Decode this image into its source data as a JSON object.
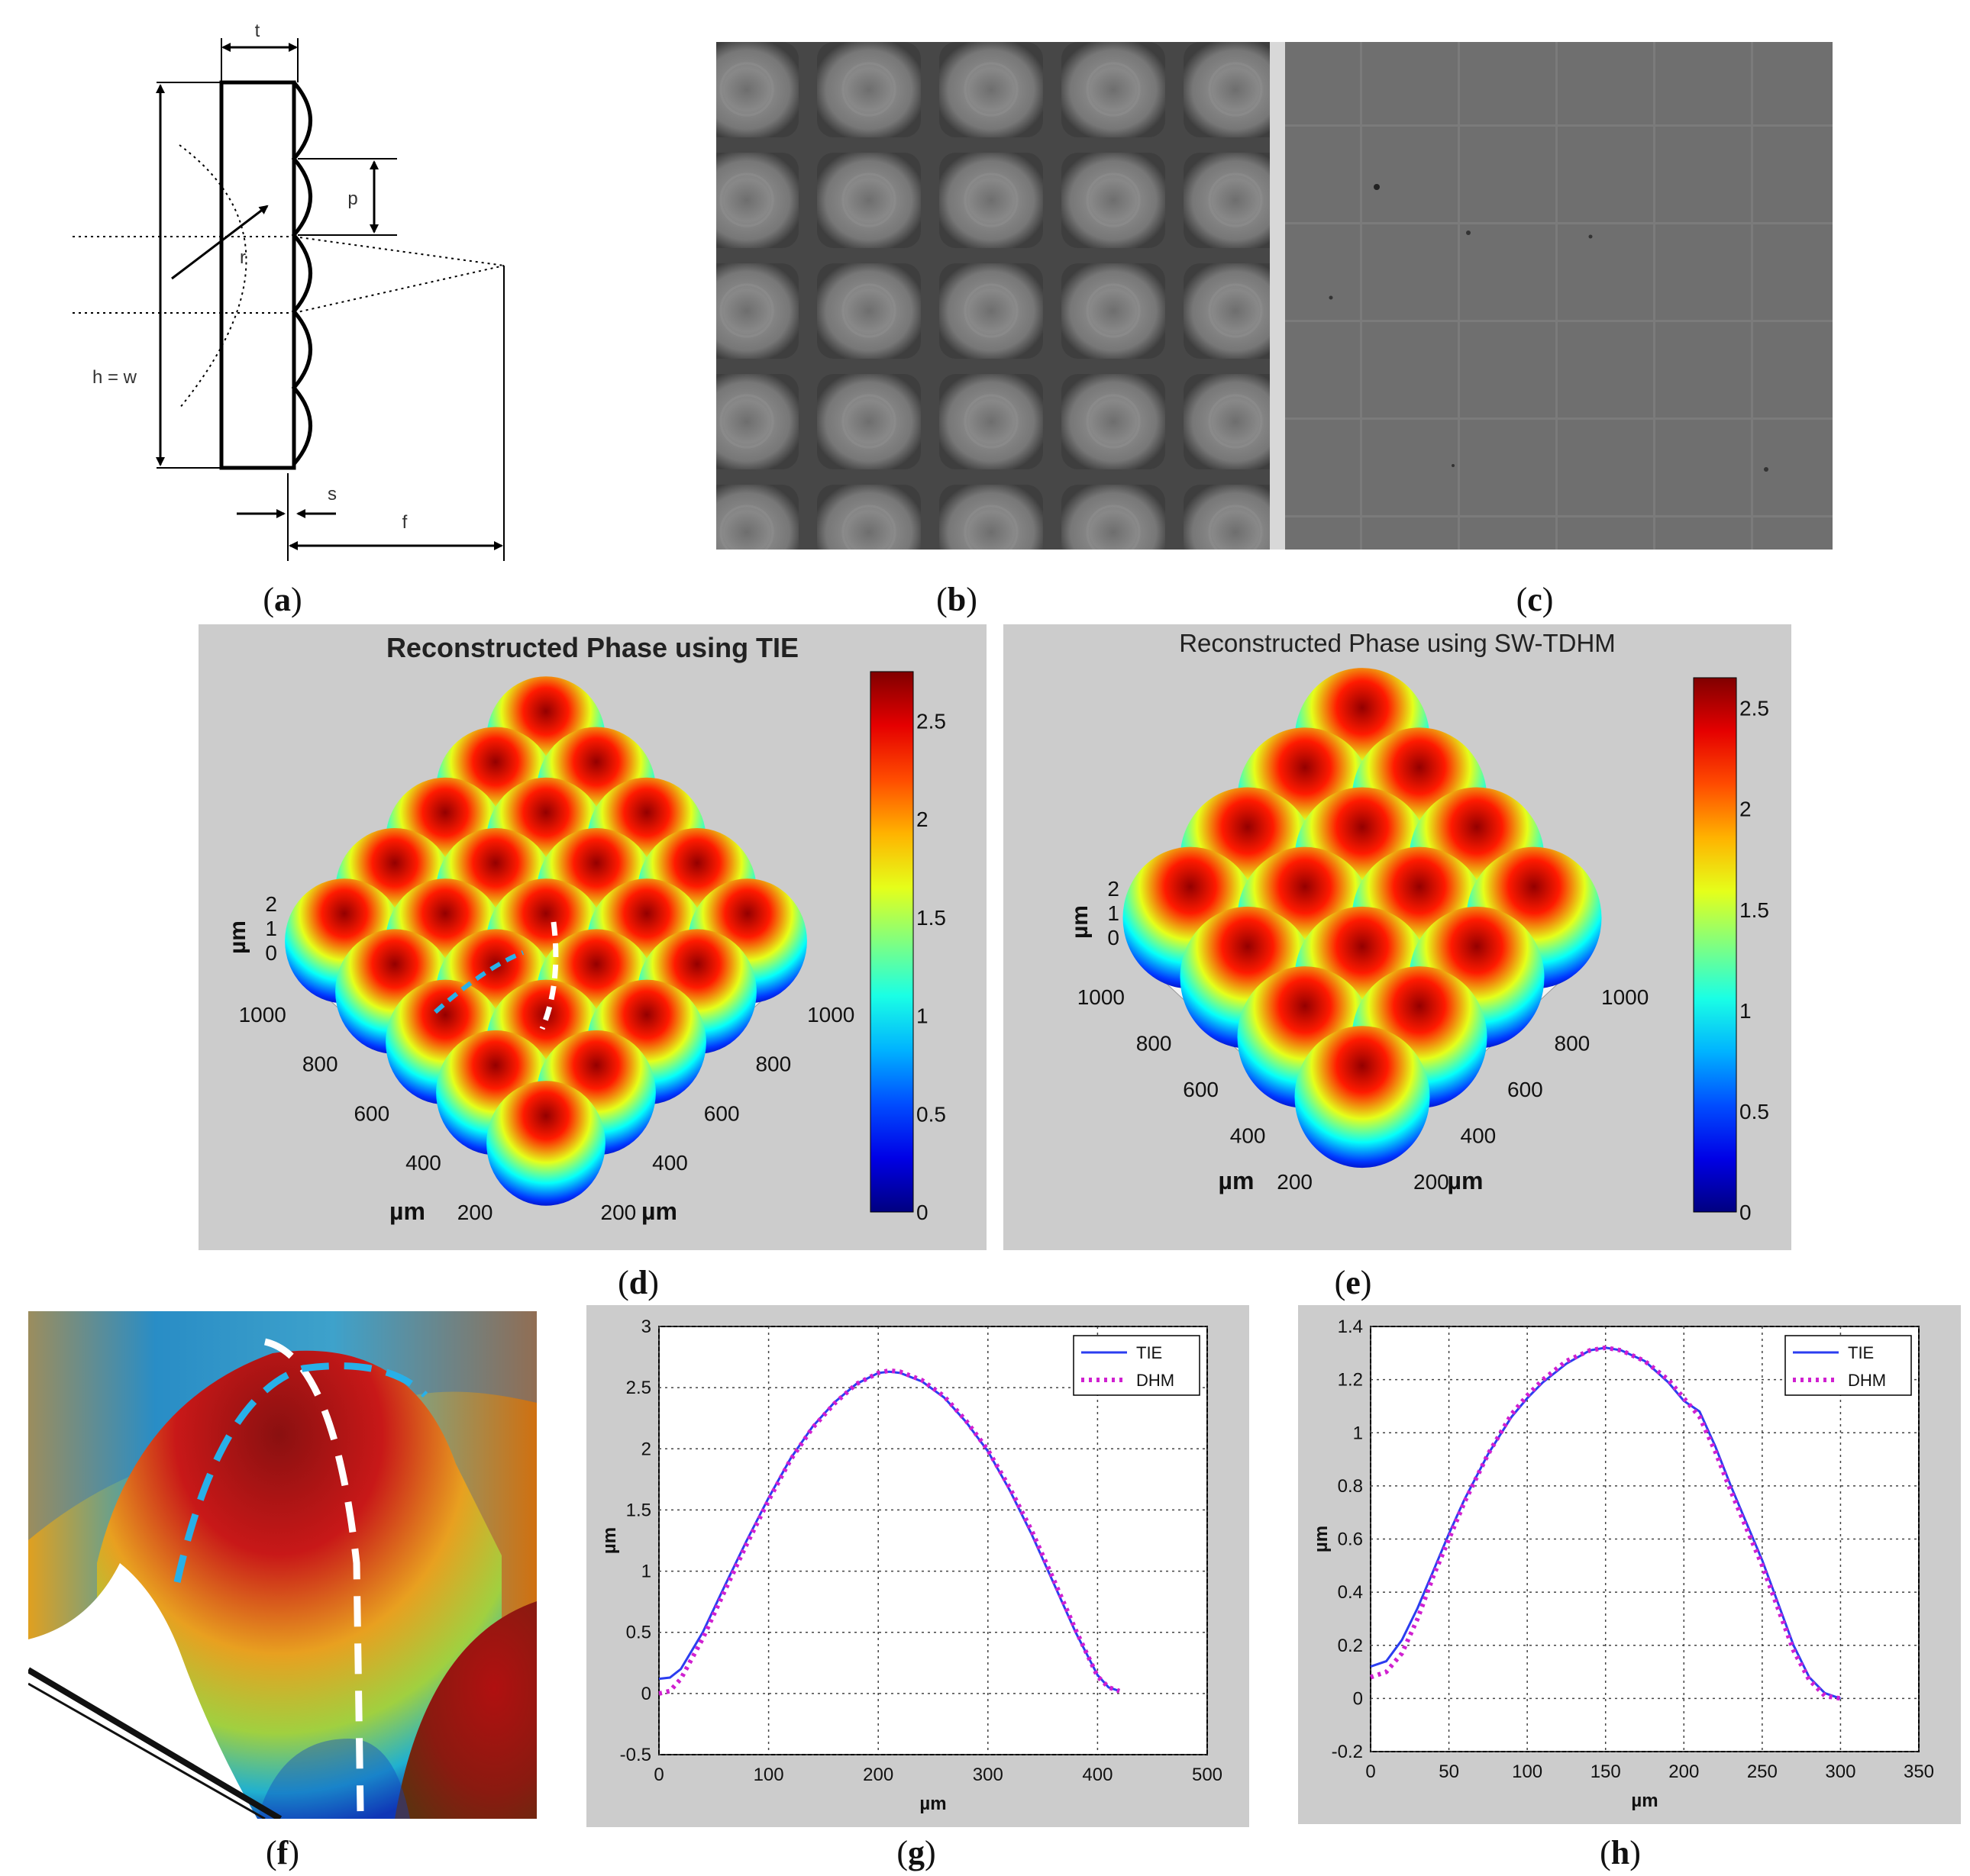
{
  "panels": {
    "a": {
      "caption": "a",
      "labels": {
        "t": "t",
        "p": "p",
        "r": "r",
        "hw": "h = w",
        "s": "s",
        "f": "f"
      }
    },
    "b": {
      "caption": "b"
    },
    "c": {
      "caption": "c"
    },
    "d": {
      "caption": "d",
      "title": "Reconstructed Phase using TIE",
      "colorbar_ticks": [
        "0",
        "0.5",
        "1",
        "1.5",
        "2",
        "2.5"
      ],
      "z_ticks": [
        "0",
        "1",
        "2"
      ],
      "z_label": "µm",
      "x_ticks": [
        "200",
        "400",
        "600",
        "800",
        "1000"
      ],
      "x_label": "µm",
      "y_ticks": [
        "200",
        "400",
        "600",
        "800",
        "1000"
      ],
      "y_label": "µm"
    },
    "e": {
      "caption": "e",
      "title": "Reconstructed Phase using SW-TDHM",
      "colorbar_ticks": [
        "0",
        "0.5",
        "1",
        "1.5",
        "2",
        "2.5"
      ],
      "z_ticks": [
        "0",
        "1",
        "2"
      ],
      "z_label": "µm",
      "x_ticks": [
        "200",
        "400",
        "600",
        "800",
        "1000"
      ],
      "x_label": "µm",
      "y_ticks": [
        "200",
        "400",
        "600",
        "800",
        "1000"
      ],
      "y_label": "µm"
    },
    "f": {
      "caption": "f"
    },
    "g": {
      "caption": "g"
    },
    "h": {
      "caption": "h"
    }
  },
  "colors": {
    "tie": "#2b3df0",
    "dhm": "#d020d0",
    "plot_bg": "#cccccc"
  },
  "chart_data": [
    {
      "id": "g",
      "type": "line",
      "xlabel": "µm",
      "ylabel": "µm",
      "xlim": [
        0,
        500
      ],
      "ylim": [
        -0.5,
        3
      ],
      "x_ticks": [
        0,
        100,
        200,
        300,
        400,
        500
      ],
      "y_ticks": [
        -0.5,
        0,
        0.5,
        1,
        1.5,
        2,
        2.5,
        3
      ],
      "grid": true,
      "legend_position": "top-right",
      "series": [
        {
          "name": "TIE",
          "style": "solid",
          "x": [
            0,
            10,
            20,
            40,
            60,
            80,
            100,
            120,
            140,
            160,
            180,
            200,
            210,
            220,
            240,
            260,
            280,
            300,
            320,
            340,
            360,
            380,
            400,
            410,
            420
          ],
          "y": [
            0.12,
            0.13,
            0.2,
            0.5,
            0.88,
            1.25,
            1.6,
            1.92,
            2.18,
            2.38,
            2.53,
            2.62,
            2.63,
            2.62,
            2.55,
            2.42,
            2.22,
            1.98,
            1.66,
            1.3,
            0.9,
            0.5,
            0.15,
            0.05,
            0.02
          ]
        },
        {
          "name": "DHM",
          "style": "dotted",
          "x": [
            0,
            10,
            20,
            40,
            60,
            80,
            100,
            120,
            140,
            160,
            180,
            200,
            210,
            220,
            240,
            260,
            280,
            300,
            320,
            340,
            360,
            380,
            400,
            410,
            420
          ],
          "y": [
            0.0,
            0.02,
            0.12,
            0.45,
            0.84,
            1.22,
            1.58,
            1.91,
            2.17,
            2.37,
            2.53,
            2.62,
            2.64,
            2.63,
            2.56,
            2.43,
            2.23,
            1.99,
            1.68,
            1.33,
            0.93,
            0.52,
            0.14,
            0.05,
            0.02
          ]
        }
      ]
    },
    {
      "id": "h",
      "type": "line",
      "xlabel": "µm",
      "ylabel": "µm",
      "xlim": [
        0,
        350
      ],
      "ylim": [
        -0.2,
        1.4
      ],
      "x_ticks": [
        0,
        50,
        100,
        150,
        200,
        250,
        300,
        350
      ],
      "y_ticks": [
        -0.2,
        0,
        0.2,
        0.4,
        0.6,
        0.8,
        1,
        1.2,
        1.4
      ],
      "grid": true,
      "legend_position": "top-right",
      "series": [
        {
          "name": "TIE",
          "style": "solid",
          "x": [
            0,
            10,
            20,
            30,
            40,
            50,
            60,
            75,
            90,
            100,
            110,
            125,
            140,
            150,
            160,
            175,
            190,
            200,
            210,
            220,
            230,
            240,
            250,
            260,
            270,
            280,
            290,
            300
          ],
          "y": [
            0.12,
            0.14,
            0.22,
            0.34,
            0.48,
            0.62,
            0.75,
            0.92,
            1.06,
            1.13,
            1.19,
            1.26,
            1.31,
            1.32,
            1.31,
            1.27,
            1.19,
            1.12,
            1.08,
            0.95,
            0.8,
            0.66,
            0.52,
            0.36,
            0.2,
            0.08,
            0.02,
            0.0
          ]
        },
        {
          "name": "DHM",
          "style": "dotted",
          "x": [
            0,
            10,
            20,
            30,
            40,
            50,
            60,
            75,
            90,
            100,
            110,
            125,
            140,
            150,
            160,
            175,
            190,
            200,
            210,
            220,
            230,
            240,
            250,
            260,
            270,
            280,
            290,
            300
          ],
          "y": [
            0.08,
            0.1,
            0.17,
            0.3,
            0.46,
            0.6,
            0.74,
            0.92,
            1.07,
            1.14,
            1.2,
            1.27,
            1.31,
            1.32,
            1.31,
            1.27,
            1.2,
            1.13,
            1.06,
            0.93,
            0.78,
            0.64,
            0.5,
            0.34,
            0.18,
            0.07,
            0.01,
            0.0
          ]
        }
      ]
    }
  ]
}
